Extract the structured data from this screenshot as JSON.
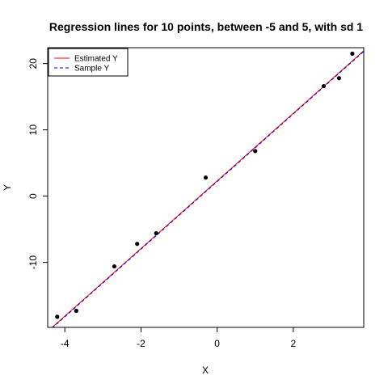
{
  "chart_data": {
    "type": "scatter",
    "title": "Regression lines for 10 points, between -5 and 5, with sd 1",
    "xlabel": "X",
    "ylabel": "Y",
    "xlim": [
      -4.45,
      3.85
    ],
    "ylim": [
      -19.8,
      22.4
    ],
    "x_ticks": [
      -4,
      -2,
      0,
      2
    ],
    "y_ticks": [
      -10,
      0,
      10,
      20
    ],
    "x_tick_labels": [
      "-4",
      "-2",
      "0",
      "2"
    ],
    "y_tick_labels": [
      "-10",
      "0",
      "10",
      "20"
    ],
    "grid": false,
    "legend_position": "top-left",
    "points": {
      "x": [
        -4.2,
        -3.7,
        -2.7,
        -2.1,
        -1.6,
        -0.3,
        1.0,
        2.8,
        3.2,
        3.55
      ],
      "y": [
        -18.2,
        -17.3,
        -10.6,
        -7.2,
        -5.6,
        2.8,
        6.8,
        16.6,
        17.8,
        21.5
      ]
    },
    "series": [
      {
        "name": "Estimated Y",
        "type": "line",
        "color": "#ff0000",
        "dash": "solid",
        "intercept": 2.3,
        "slope": 5.1
      },
      {
        "name": "Sample Y",
        "type": "line",
        "color": "#0000ff",
        "dash": "dashed",
        "intercept": 2.2,
        "slope": 5.1
      }
    ],
    "point_color": "#000000"
  }
}
